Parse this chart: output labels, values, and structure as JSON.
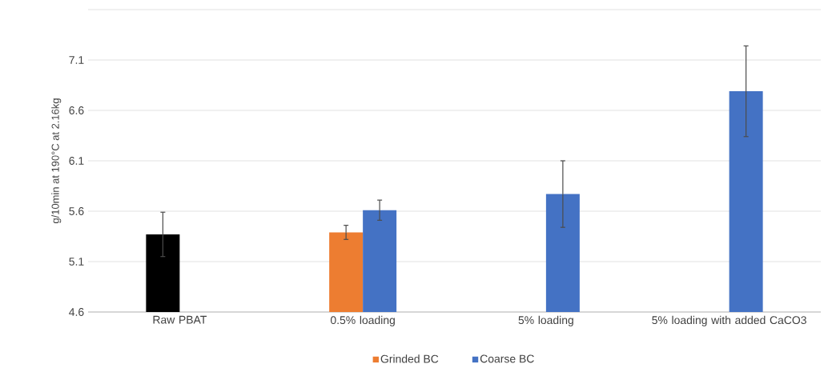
{
  "chart_data": {
    "type": "bar",
    "ylabel": "g/10min at 190°C at 2.16kg",
    "categories": [
      "Raw PBAT",
      "0.5% loading",
      "5% loading",
      "5% loading with added CaCO3"
    ],
    "series": [
      {
        "color": "#000000",
        "values": [
          5.37,
          null,
          null,
          null
        ],
        "errors": [
          0.22,
          null,
          null,
          null
        ]
      },
      {
        "name": "Grinded BC",
        "color": "#ed7d31",
        "values": [
          null,
          5.39,
          null,
          null
        ],
        "errors": [
          null,
          0.07,
          null,
          null
        ]
      },
      {
        "name": "Coarse BC",
        "color": "#4472c4",
        "values": [
          null,
          5.61,
          5.77,
          6.79
        ],
        "errors": [
          null,
          0.1,
          0.33,
          0.45
        ]
      }
    ],
    "ylim": [
      4.6,
      7.6
    ],
    "yticks": [
      4.6,
      5.1,
      5.6,
      6.1,
      6.6,
      7.1,
      {
        "value": 7.6,
        "label": null
      }
    ],
    "grid": "y",
    "legend": "bottom"
  }
}
